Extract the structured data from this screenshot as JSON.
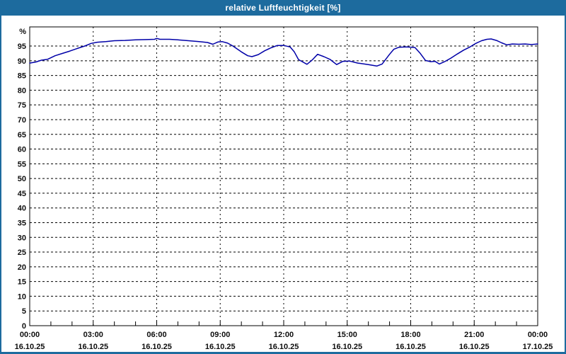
{
  "window": {
    "title": "relative Luftfeuchtigkeit [%]"
  },
  "colors": {
    "titlebar_bg": "#1d6b9e",
    "titlebar_text": "#ffffff",
    "window_border": "#1d6b9e",
    "plot_border": "#000000",
    "gridline": "#000000",
    "series_line": "#0000a8",
    "label_text": "#0d0d0d",
    "background": "#ffffff"
  },
  "chart_data": {
    "type": "line",
    "title": "relative Luftfeuchtigkeit [%]",
    "ylabel": "%",
    "y_unit_label": "%",
    "ylim": [
      0,
      101.5
    ],
    "y_ticks": [
      95,
      90,
      85,
      80,
      75,
      70,
      65,
      60,
      55,
      50,
      45,
      40,
      35,
      30,
      25,
      20,
      15,
      10,
      5,
      0
    ],
    "grid": "dashed",
    "legend_position": "none",
    "xlim_hours": [
      0,
      24
    ],
    "x_minor_tick_every_hours": 1,
    "x_major_tick_every_hours": 3,
    "x_ticks": [
      {
        "hour": 0,
        "time": "00:00",
        "date": "16.10.25"
      },
      {
        "hour": 3,
        "time": "03:00",
        "date": "16.10.25"
      },
      {
        "hour": 6,
        "time": "06:00",
        "date": "16.10.25"
      },
      {
        "hour": 9,
        "time": "09:00",
        "date": "16.10.25"
      },
      {
        "hour": 12,
        "time": "12:00",
        "date": "16.10.25"
      },
      {
        "hour": 15,
        "time": "15:00",
        "date": "16.10.25"
      },
      {
        "hour": 18,
        "time": "18:00",
        "date": "16.10.25"
      },
      {
        "hour": 21,
        "time": "21:00",
        "date": "16.10.25"
      },
      {
        "hour": 24,
        "time": "00:00",
        "date": "17.10.25"
      }
    ],
    "series": [
      {
        "name": "relative Luftfeuchtigkeit",
        "unit": "%",
        "points": [
          [
            0.0,
            89.2
          ],
          [
            0.3,
            89.6
          ],
          [
            0.55,
            90.2
          ],
          [
            0.85,
            90.5
          ],
          [
            1.2,
            91.7
          ],
          [
            1.55,
            92.5
          ],
          [
            1.9,
            93.3
          ],
          [
            2.25,
            94.2
          ],
          [
            2.6,
            95.0
          ],
          [
            2.9,
            95.9
          ],
          [
            3.2,
            96.3
          ],
          [
            3.6,
            96.5
          ],
          [
            4.0,
            96.8
          ],
          [
            4.5,
            96.9
          ],
          [
            5.0,
            97.1
          ],
          [
            5.5,
            97.2
          ],
          [
            5.9,
            97.3
          ],
          [
            6.0,
            97.6
          ],
          [
            6.15,
            97.3
          ],
          [
            6.6,
            97.3
          ],
          [
            7.0,
            97.1
          ],
          [
            7.5,
            96.8
          ],
          [
            8.0,
            96.5
          ],
          [
            8.4,
            96.2
          ],
          [
            8.65,
            95.6
          ],
          [
            8.9,
            96.4
          ],
          [
            9.1,
            96.5
          ],
          [
            9.35,
            96.0
          ],
          [
            9.6,
            95.0
          ],
          [
            10.0,
            93.0
          ],
          [
            10.3,
            91.7
          ],
          [
            10.5,
            91.4
          ],
          [
            10.8,
            92.1
          ],
          [
            11.1,
            93.4
          ],
          [
            11.4,
            94.4
          ],
          [
            11.7,
            95.2
          ],
          [
            12.0,
            95.2
          ],
          [
            12.3,
            94.7
          ],
          [
            12.5,
            93.0
          ],
          [
            12.7,
            90.4
          ],
          [
            12.9,
            89.6
          ],
          [
            13.1,
            88.8
          ],
          [
            13.35,
            90.3
          ],
          [
            13.6,
            92.2
          ],
          [
            13.9,
            91.4
          ],
          [
            14.2,
            90.4
          ],
          [
            14.5,
            88.7
          ],
          [
            14.8,
            89.8
          ],
          [
            15.1,
            89.9
          ],
          [
            15.5,
            89.2
          ],
          [
            16.0,
            88.7
          ],
          [
            16.4,
            88.2
          ],
          [
            16.65,
            88.9
          ],
          [
            17.0,
            92.2
          ],
          [
            17.2,
            93.9
          ],
          [
            17.45,
            94.6
          ],
          [
            17.8,
            94.7
          ],
          [
            18.2,
            94.5
          ],
          [
            18.45,
            92.5
          ],
          [
            18.7,
            90.1
          ],
          [
            18.95,
            89.7
          ],
          [
            19.15,
            89.8
          ],
          [
            19.35,
            88.9
          ],
          [
            19.6,
            89.7
          ],
          [
            19.9,
            90.9
          ],
          [
            20.2,
            92.3
          ],
          [
            20.5,
            93.6
          ],
          [
            20.8,
            94.7
          ],
          [
            21.05,
            95.8
          ],
          [
            21.35,
            96.8
          ],
          [
            21.6,
            97.3
          ],
          [
            21.8,
            97.4
          ],
          [
            22.05,
            96.9
          ],
          [
            22.3,
            96.1
          ],
          [
            22.55,
            95.4
          ],
          [
            22.8,
            95.7
          ],
          [
            23.1,
            95.6
          ],
          [
            23.4,
            95.7
          ],
          [
            23.7,
            95.5
          ],
          [
            24.0,
            95.7
          ]
        ]
      }
    ]
  }
}
